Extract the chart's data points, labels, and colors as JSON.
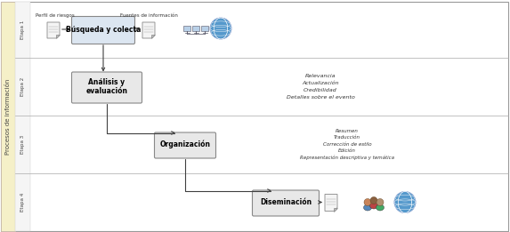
{
  "fig_width": 5.73,
  "fig_height": 2.61,
  "dpi": 100,
  "bg_color": "#ffffff",
  "left_bar_color": "#f5f0c8",
  "left_bar_label": "Procesos de información",
  "row_labels": [
    "Etapa 1",
    "Etapa 2",
    "Etapa 3",
    "Etapa 4"
  ],
  "box1_label": "Búsqueda y colecta",
  "box2_label": "Análisis y\nevaluación",
  "box3_label": "Organización",
  "box4_label": "Diseminación",
  "box1_facecolor": "#dce6f1",
  "box_facecolor2": "#e8e8e8",
  "box_edgecolor": "#888888",
  "label1_top": "Perfil de riesgos",
  "label2_top": "Fuentes de información",
  "text_etapa2": "Relevancia\nActualización\nCredibilidad\nDetalles sobre el evento",
  "text_etapa3": "Resumen\nTraducción\nCorrección de estilo\nEdición\nRepresentación descriptiva y temática",
  "grid_color": "#aaaaaa",
  "arrow_color": "#404040"
}
